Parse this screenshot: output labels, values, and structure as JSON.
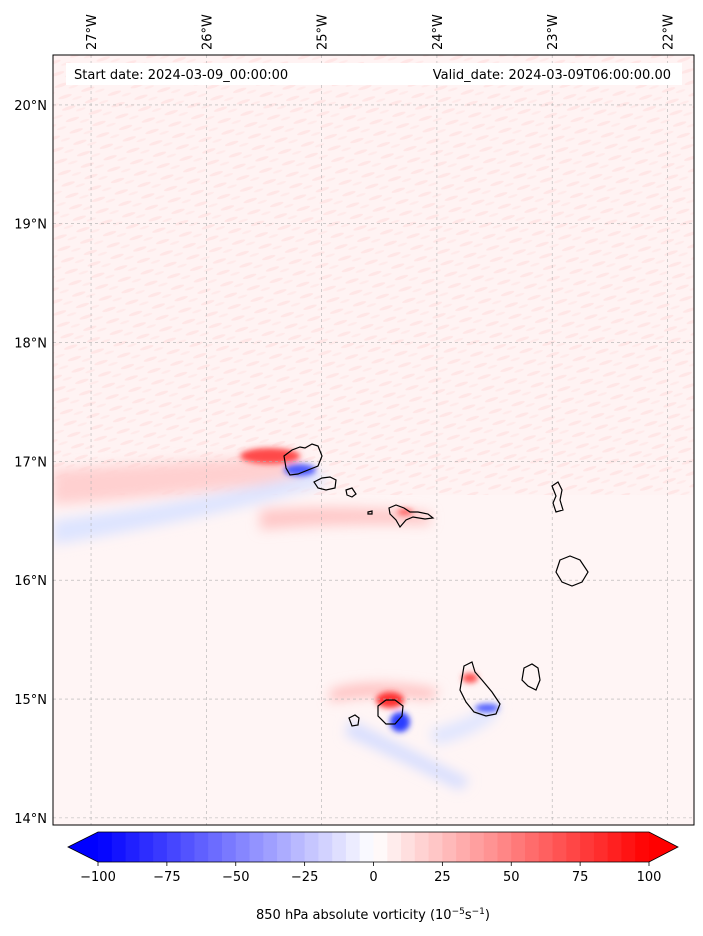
{
  "header": {
    "start_date": "Start date: 2024-03-09_00:00:00",
    "valid_date": "Valid_date: 2024-03-09T06:00:00.00"
  },
  "map": {
    "lon_labels": [
      "27°W",
      "26°W",
      "25°W",
      "24°W",
      "23°W",
      "22°W"
    ],
    "lat_labels": [
      "20°N",
      "19°N",
      "18°N",
      "17°N",
      "16°N",
      "15°N",
      "14°N"
    ],
    "lon_values": [
      -27,
      -26,
      -25,
      -24,
      -23,
      -22
    ],
    "lat_values": [
      20,
      19,
      18,
      17,
      16,
      15,
      14
    ],
    "extent": {
      "lon_min": -27.33,
      "lon_max": -21.77,
      "lat_min": 13.94,
      "lat_max": 20.42
    },
    "field": "850 hPa absolute vorticity",
    "coastline_color": "#000000",
    "gridline_color": "#b0b0b0"
  },
  "colorbar": {
    "label_main": "850 hPa absolute vorticity (10",
    "label_sup1": "−5",
    "label_mid": "s",
    "label_sup2": "−1",
    "label_end": ")",
    "ticks": [
      "−100",
      "−75",
      "−50",
      "−25",
      "0",
      "25",
      "50",
      "75",
      "100"
    ],
    "tick_values": [
      -100,
      -75,
      -50,
      -25,
      0,
      25,
      50,
      75,
      100
    ],
    "range": [
      -100,
      100
    ],
    "colormap": "bwr",
    "color_min": "#0000ff",
    "color_mid": "#ffffff",
    "color_max": "#ff0000"
  }
}
